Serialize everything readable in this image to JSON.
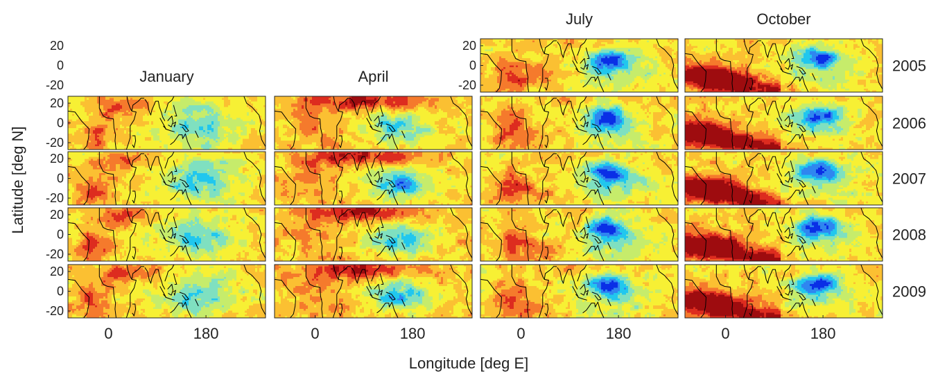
{
  "chart_data": {
    "type": "heatmap",
    "layout": "small-multiples grid",
    "title": "",
    "xlabel": "Longitude [deg E]",
    "ylabel": "Latitude [deg N]",
    "columns": [
      "January",
      "April",
      "July",
      "October"
    ],
    "rows": [
      "2005",
      "2006",
      "2007",
      "2008",
      "2009"
    ],
    "x_ticks": [
      "0",
      "180"
    ],
    "x_tick_values": [
      0,
      180
    ],
    "y_ticks": [
      "20",
      "0",
      "-20"
    ],
    "y_tick_values": [
      20,
      0,
      -20
    ],
    "xlim": [
      -75,
      290
    ],
    "ylim": [
      -27,
      27
    ],
    "missing_panels": [
      {
        "column": "January",
        "row": "2005"
      },
      {
        "column": "April",
        "row": "2005"
      }
    ],
    "colormap": "jet",
    "colormap_colors": [
      "#0a2fe6",
      "#2f86f0",
      "#21c7ee",
      "#7fe0c0",
      "#c6ec6b",
      "#f7f034",
      "#fbc032",
      "#f57a2c",
      "#dd2c1f",
      "#9e0c0f"
    ],
    "coastline_color": "#000000",
    "grid": false
  }
}
